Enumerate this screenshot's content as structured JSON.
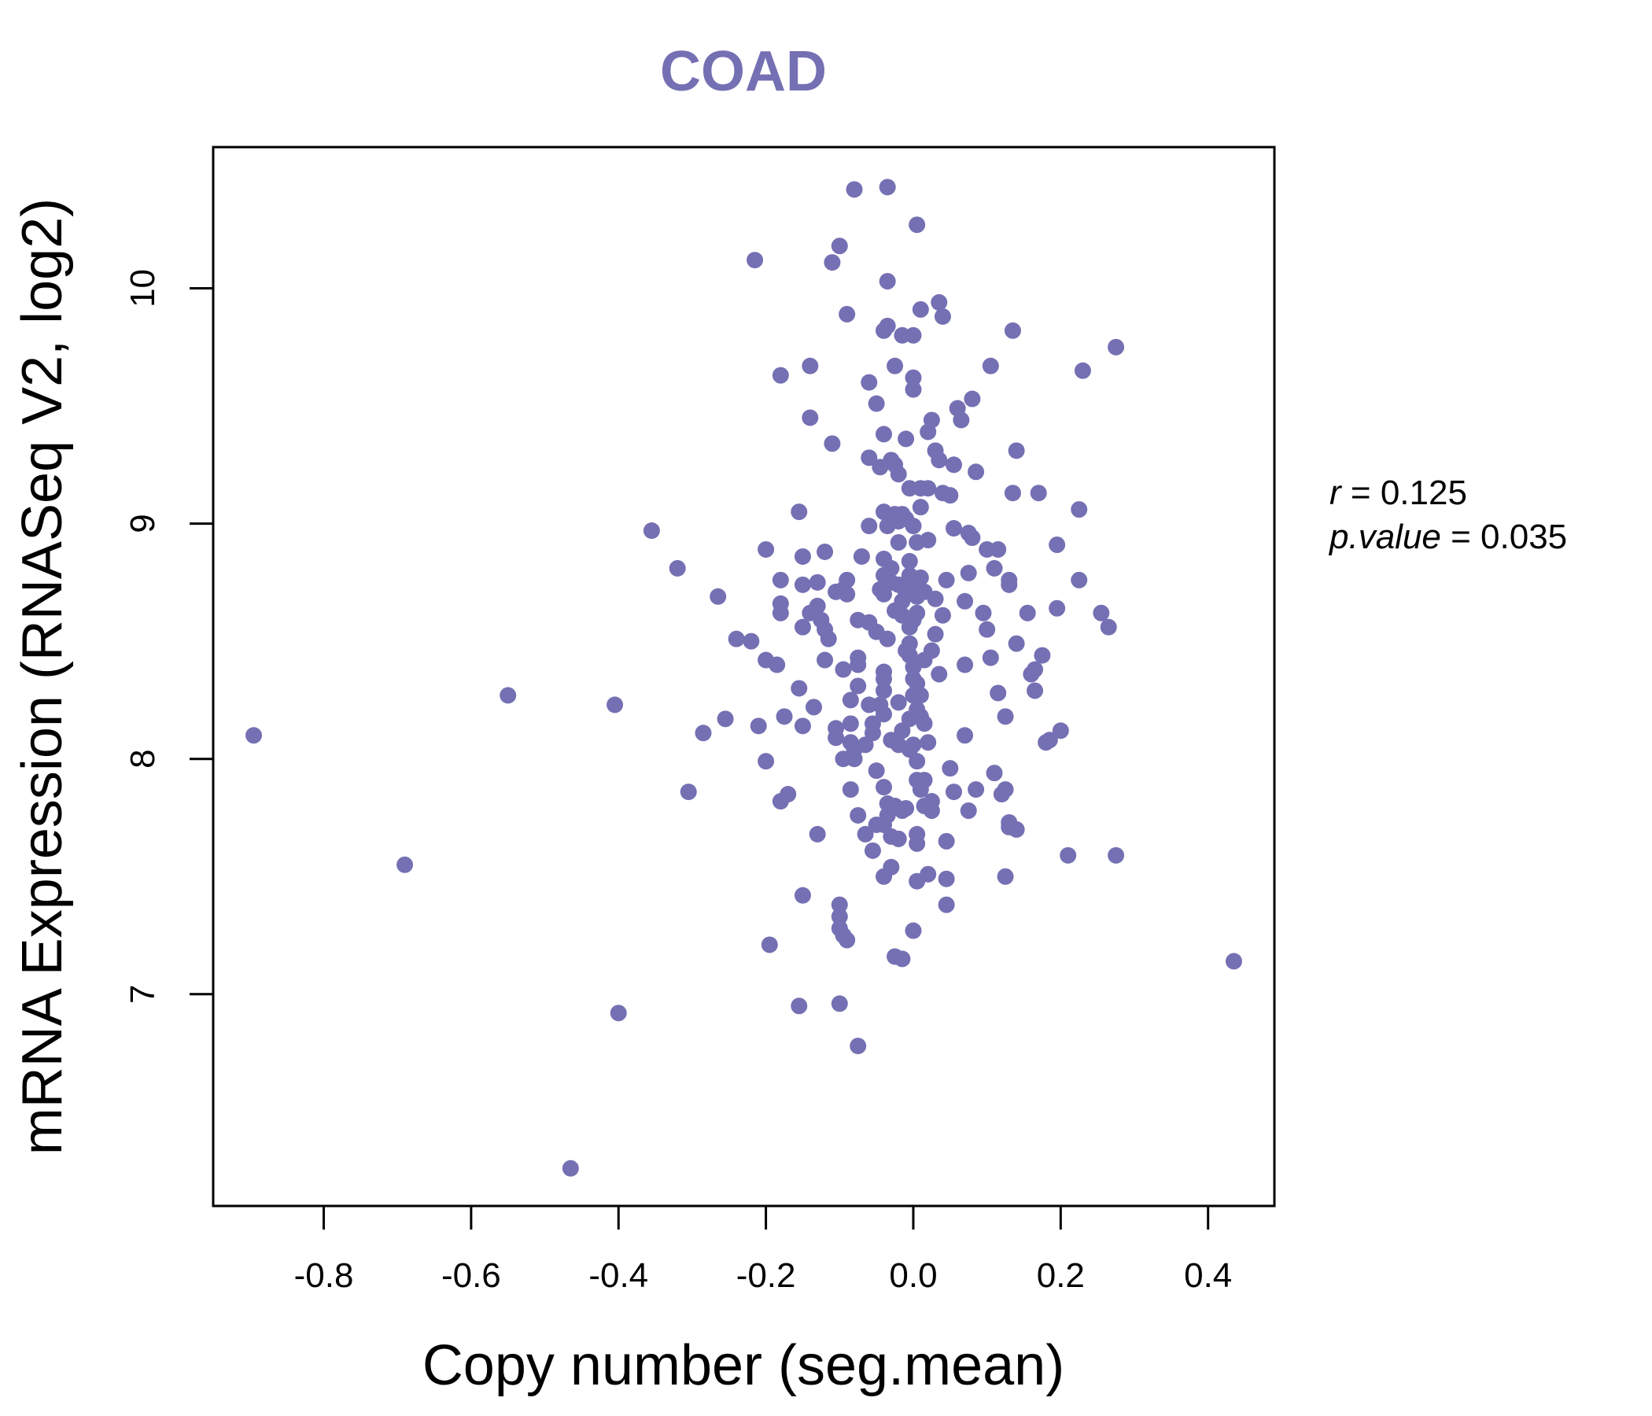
{
  "chart_data": {
    "type": "scatter",
    "title": "COAD",
    "xlabel": "Copy number (seg.mean)",
    "ylabel": "mRNA Expression (RNASeq V2, log2)",
    "xlim": [
      -0.95,
      0.49
    ],
    "ylim": [
      6.1,
      10.6
    ],
    "x_ticks": [
      -0.8,
      -0.6,
      -0.4,
      -0.2,
      0.0,
      0.2,
      0.4
    ],
    "x_tick_labels": [
      "-0.8",
      "-0.6",
      "-0.4",
      "-0.2",
      "0.0",
      "0.2",
      "0.4"
    ],
    "y_ticks": [
      7,
      8,
      9,
      10
    ],
    "y_tick_labels": [
      "7",
      "8",
      "9",
      "10"
    ],
    "point_color": "#7570b3",
    "grid": false,
    "stats": {
      "r_label": "r",
      "r_value": "0.125",
      "p_label": "p.value",
      "p_value": "0.035"
    },
    "points": [
      [
        -0.895,
        8.1
      ],
      [
        -0.69,
        7.55
      ],
      [
        -0.55,
        8.27
      ],
      [
        -0.465,
        6.26
      ],
      [
        -0.405,
        8.23
      ],
      [
        -0.4,
        6.92
      ],
      [
        -0.355,
        8.97
      ],
      [
        -0.32,
        8.81
      ],
      [
        -0.305,
        7.86
      ],
      [
        -0.285,
        8.11
      ],
      [
        -0.265,
        8.69
      ],
      [
        -0.255,
        8.17
      ],
      [
        -0.24,
        8.51
      ],
      [
        -0.22,
        8.5
      ],
      [
        -0.215,
        10.12
      ],
      [
        -0.21,
        8.14
      ],
      [
        -0.2,
        8.89
      ],
      [
        -0.2,
        8.42
      ],
      [
        -0.2,
        7.99
      ],
      [
        -0.195,
        7.21
      ],
      [
        -0.185,
        8.4
      ],
      [
        -0.18,
        8.76
      ],
      [
        -0.18,
        8.66
      ],
      [
        -0.18,
        8.62
      ],
      [
        -0.18,
        7.82
      ],
      [
        -0.18,
        9.63
      ],
      [
        -0.175,
        8.18
      ],
      [
        -0.17,
        7.85
      ],
      [
        -0.155,
        9.05
      ],
      [
        -0.155,
        8.3
      ],
      [
        -0.155,
        6.95
      ],
      [
        -0.15,
        8.86
      ],
      [
        -0.15,
        8.74
      ],
      [
        -0.15,
        8.56
      ],
      [
        -0.15,
        8.14
      ],
      [
        -0.15,
        7.42
      ],
      [
        -0.14,
        9.45
      ],
      [
        -0.14,
        9.67
      ],
      [
        -0.14,
        8.62
      ],
      [
        -0.135,
        8.22
      ],
      [
        -0.13,
        8.75
      ],
      [
        -0.13,
        8.65
      ],
      [
        -0.13,
        7.68
      ],
      [
        -0.125,
        8.59
      ],
      [
        -0.12,
        8.88
      ],
      [
        -0.12,
        8.55
      ],
      [
        -0.12,
        8.42
      ],
      [
        -0.115,
        8.51
      ],
      [
        -0.11,
        10.11
      ],
      [
        -0.11,
        9.34
      ],
      [
        -0.105,
        8.71
      ],
      [
        -0.105,
        8.13
      ],
      [
        -0.105,
        8.09
      ],
      [
        -0.1,
        10.18
      ],
      [
        -0.1,
        7.38
      ],
      [
        -0.1,
        7.33
      ],
      [
        -0.1,
        7.28
      ],
      [
        -0.1,
        6.96
      ],
      [
        -0.095,
        8.72
      ],
      [
        -0.095,
        8.38
      ],
      [
        -0.095,
        8.0
      ],
      [
        -0.095,
        7.25
      ],
      [
        -0.09,
        9.89
      ],
      [
        -0.09,
        8.76
      ],
      [
        -0.09,
        8.7
      ],
      [
        -0.09,
        7.23
      ],
      [
        -0.085,
        8.25
      ],
      [
        -0.085,
        8.15
      ],
      [
        -0.085,
        8.07
      ],
      [
        -0.085,
        7.87
      ],
      [
        -0.08,
        10.42
      ],
      [
        -0.08,
        8.04
      ],
      [
        -0.08,
        8.0
      ],
      [
        -0.075,
        8.59
      ],
      [
        -0.075,
        8.43
      ],
      [
        -0.075,
        8.4
      ],
      [
        -0.075,
        8.31
      ],
      [
        -0.075,
        7.76
      ],
      [
        -0.075,
        6.78
      ],
      [
        -0.07,
        8.86
      ],
      [
        -0.065,
        8.06
      ],
      [
        -0.065,
        7.68
      ],
      [
        -0.06,
        9.6
      ],
      [
        -0.06,
        9.28
      ],
      [
        -0.06,
        8.99
      ],
      [
        -0.06,
        8.58
      ],
      [
        -0.06,
        8.23
      ],
      [
        -0.055,
        8.15
      ],
      [
        -0.055,
        8.11
      ],
      [
        -0.055,
        7.61
      ],
      [
        -0.05,
        9.51
      ],
      [
        -0.05,
        8.54
      ],
      [
        -0.05,
        7.95
      ],
      [
        -0.05,
        7.72
      ],
      [
        -0.045,
        9.24
      ],
      [
        -0.045,
        8.72
      ],
      [
        -0.045,
        8.23
      ],
      [
        -0.04,
        9.82
      ],
      [
        -0.04,
        9.38
      ],
      [
        -0.04,
        9.05
      ],
      [
        -0.04,
        8.85
      ],
      [
        -0.04,
        8.78
      ],
      [
        -0.04,
        8.7
      ],
      [
        -0.04,
        8.37
      ],
      [
        -0.04,
        8.34
      ],
      [
        -0.04,
        8.29
      ],
      [
        -0.04,
        8.19
      ],
      [
        -0.04,
        7.88
      ],
      [
        -0.04,
        7.72
      ],
      [
        -0.04,
        7.5
      ],
      [
        -0.035,
        10.43
      ],
      [
        -0.035,
        10.03
      ],
      [
        -0.035,
        9.84
      ],
      [
        -0.035,
        8.99
      ],
      [
        -0.035,
        8.51
      ],
      [
        -0.035,
        7.81
      ],
      [
        -0.035,
        7.76
      ],
      [
        -0.03,
        9.27
      ],
      [
        -0.03,
        8.81
      ],
      [
        -0.03,
        8.75
      ],
      [
        -0.03,
        8.08
      ],
      [
        -0.03,
        7.67
      ],
      [
        -0.03,
        7.54
      ],
      [
        -0.025,
        9.67
      ],
      [
        -0.025,
        9.25
      ],
      [
        -0.025,
        9.04
      ],
      [
        -0.025,
        8.63
      ],
      [
        -0.025,
        7.8
      ],
      [
        -0.025,
        7.16
      ],
      [
        -0.02,
        9.21
      ],
      [
        -0.02,
        9.01
      ],
      [
        -0.02,
        8.92
      ],
      [
        -0.02,
        8.74
      ],
      [
        -0.02,
        8.24
      ],
      [
        -0.02,
        8.06
      ],
      [
        -0.02,
        7.66
      ],
      [
        -0.015,
        9.8
      ],
      [
        -0.015,
        9.04
      ],
      [
        -0.015,
        8.67
      ],
      [
        -0.015,
        8.61
      ],
      [
        -0.015,
        8.12
      ],
      [
        -0.015,
        7.78
      ],
      [
        -0.015,
        7.15
      ],
      [
        -0.01,
        9.36
      ],
      [
        -0.01,
        9.02
      ],
      [
        -0.01,
        8.7
      ],
      [
        -0.01,
        8.46
      ],
      [
        -0.01,
        7.79
      ],
      [
        -0.005,
        9.15
      ],
      [
        -0.005,
        8.84
      ],
      [
        -0.005,
        8.78
      ],
      [
        -0.005,
        8.56
      ],
      [
        -0.005,
        8.49
      ],
      [
        -0.005,
        8.44
      ],
      [
        -0.005,
        8.17
      ],
      [
        -0.005,
        8.04
      ],
      [
        0.0,
        9.8
      ],
      [
        0.0,
        9.62
      ],
      [
        0.0,
        9.57
      ],
      [
        0.0,
        8.99
      ],
      [
        0.0,
        8.74
      ],
      [
        0.0,
        8.59
      ],
      [
        0.0,
        8.39
      ],
      [
        0.0,
        8.34
      ],
      [
        0.0,
        8.27
      ],
      [
        0.0,
        8.06
      ],
      [
        0.0,
        7.27
      ],
      [
        0.005,
        10.27
      ],
      [
        0.005,
        8.92
      ],
      [
        0.005,
        8.69
      ],
      [
        0.005,
        8.62
      ],
      [
        0.005,
        8.32
      ],
      [
        0.005,
        8.21
      ],
      [
        0.005,
        7.99
      ],
      [
        0.005,
        7.91
      ],
      [
        0.005,
        7.68
      ],
      [
        0.005,
        7.64
      ],
      [
        0.005,
        7.48
      ],
      [
        0.01,
        9.91
      ],
      [
        0.01,
        9.15
      ],
      [
        0.01,
        9.07
      ],
      [
        0.01,
        8.77
      ],
      [
        0.01,
        8.27
      ],
      [
        0.01,
        8.18
      ],
      [
        0.01,
        7.87
      ],
      [
        0.015,
        8.71
      ],
      [
        0.015,
        8.42
      ],
      [
        0.015,
        8.15
      ],
      [
        0.015,
        7.91
      ],
      [
        0.015,
        7.8
      ],
      [
        0.02,
        9.39
      ],
      [
        0.02,
        9.15
      ],
      [
        0.02,
        8.93
      ],
      [
        0.02,
        8.07
      ],
      [
        0.02,
        7.51
      ],
      [
        0.025,
        9.44
      ],
      [
        0.025,
        8.46
      ],
      [
        0.025,
        7.82
      ],
      [
        0.025,
        7.78
      ],
      [
        0.03,
        9.31
      ],
      [
        0.03,
        8.53
      ],
      [
        0.03,
        8.68
      ],
      [
        0.035,
        9.94
      ],
      [
        0.035,
        9.27
      ],
      [
        0.035,
        8.36
      ],
      [
        0.04,
        9.88
      ],
      [
        0.04,
        9.13
      ],
      [
        0.04,
        8.61
      ],
      [
        0.045,
        8.76
      ],
      [
        0.045,
        7.65
      ],
      [
        0.045,
        7.49
      ],
      [
        0.045,
        7.38
      ],
      [
        0.05,
        9.12
      ],
      [
        0.05,
        7.96
      ],
      [
        0.055,
        9.25
      ],
      [
        0.055,
        8.98
      ],
      [
        0.055,
        7.86
      ],
      [
        0.06,
        9.49
      ],
      [
        0.065,
        9.44
      ],
      [
        0.07,
        8.67
      ],
      [
        0.07,
        8.4
      ],
      [
        0.07,
        8.1
      ],
      [
        0.075,
        8.96
      ],
      [
        0.075,
        8.79
      ],
      [
        0.075,
        7.78
      ],
      [
        0.08,
        9.53
      ],
      [
        0.08,
        8.94
      ],
      [
        0.085,
        9.22
      ],
      [
        0.085,
        7.87
      ],
      [
        0.095,
        8.62
      ],
      [
        0.1,
        8.89
      ],
      [
        0.1,
        8.55
      ],
      [
        0.105,
        9.67
      ],
      [
        0.105,
        8.43
      ],
      [
        0.11,
        8.81
      ],
      [
        0.11,
        7.94
      ],
      [
        0.115,
        8.89
      ],
      [
        0.115,
        8.28
      ],
      [
        0.12,
        7.85
      ],
      [
        0.125,
        8.18
      ],
      [
        0.125,
        7.87
      ],
      [
        0.125,
        7.5
      ],
      [
        0.13,
        8.76
      ],
      [
        0.13,
        8.74
      ],
      [
        0.13,
        7.73
      ],
      [
        0.13,
        7.71
      ],
      [
        0.135,
        9.82
      ],
      [
        0.135,
        9.13
      ],
      [
        0.14,
        9.31
      ],
      [
        0.14,
        8.49
      ],
      [
        0.14,
        7.7
      ],
      [
        0.155,
        8.62
      ],
      [
        0.16,
        8.36
      ],
      [
        0.165,
        8.38
      ],
      [
        0.165,
        8.29
      ],
      [
        0.17,
        9.13
      ],
      [
        0.175,
        8.44
      ],
      [
        0.18,
        8.07
      ],
      [
        0.185,
        8.08
      ],
      [
        0.195,
        8.91
      ],
      [
        0.195,
        8.64
      ],
      [
        0.2,
        8.12
      ],
      [
        0.21,
        7.59
      ],
      [
        0.225,
        9.06
      ],
      [
        0.225,
        8.76
      ],
      [
        0.23,
        9.65
      ],
      [
        0.255,
        8.62
      ],
      [
        0.265,
        8.56
      ],
      [
        0.275,
        9.75
      ],
      [
        0.275,
        7.59
      ],
      [
        0.435,
        7.14
      ]
    ]
  }
}
